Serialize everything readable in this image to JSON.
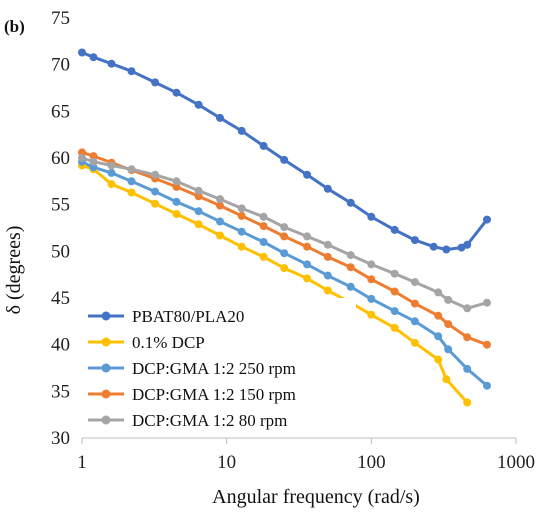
{
  "panel_label": "(b)",
  "chart_data": {
    "type": "line",
    "xlabel": "Angular frequency (rad/s)",
    "ylabel": "δ (degrees)",
    "xscale": "log",
    "xlim": [
      1,
      1000
    ],
    "ylim": [
      30,
      75
    ],
    "xticks": [
      "1",
      "10",
      "100",
      "1000"
    ],
    "yticks": [
      "30",
      "35",
      "40",
      "45",
      "50",
      "55",
      "60",
      "65",
      "70",
      "75"
    ],
    "grid": false,
    "legend_position": "bottom-left",
    "series": [
      {
        "name": "PBAT80/PLA20",
        "color": "#4472C4",
        "x": [
          1,
          1.2,
          1.6,
          2.2,
          3.2,
          4.5,
          6.4,
          9,
          12.7,
          18,
          25,
          36,
          50,
          72,
          100,
          145,
          200,
          270,
          330,
          420,
          460,
          630
        ],
        "y": [
          71.3,
          70.8,
          70.1,
          69.3,
          68.1,
          67.0,
          65.7,
          64.3,
          62.9,
          61.3,
          59.8,
          58.2,
          56.7,
          55.2,
          53.7,
          52.3,
          51.2,
          50.5,
          50.2,
          50.4,
          50.7,
          53.4
        ]
      },
      {
        "name": "0.1% DCP",
        "color": "#FFC000",
        "x": [
          1,
          1.2,
          1.6,
          2.2,
          3.2,
          4.5,
          6.4,
          9,
          12.7,
          18,
          25,
          36,
          50,
          72,
          100,
          145,
          200,
          290,
          330,
          460
        ],
        "y": [
          59.2,
          58.8,
          57.2,
          56.3,
          55.1,
          54.0,
          52.9,
          51.7,
          50.5,
          49.4,
          48.2,
          47.1,
          45.8,
          44.5,
          43.2,
          41.8,
          40.2,
          38.4,
          36.3,
          33.8
        ]
      },
      {
        "name": "DCP:GMA 1:2 250 rpm",
        "color": "#5B9BD5",
        "x": [
          1,
          1.2,
          1.6,
          2.2,
          3.2,
          4.5,
          6.4,
          9,
          12.7,
          18,
          25,
          36,
          50,
          72,
          100,
          145,
          200,
          290,
          340,
          460,
          630
        ],
        "y": [
          59.6,
          59.0,
          58.4,
          57.5,
          56.4,
          55.3,
          54.3,
          53.2,
          52.1,
          51.0,
          49.8,
          48.6,
          47.4,
          46.2,
          44.9,
          43.6,
          42.5,
          40.9,
          39.5,
          37.4,
          35.6
        ]
      },
      {
        "name": "DCP:GMA 1:2 150 rpm",
        "color": "#ED7D31",
        "x": [
          1,
          1.2,
          1.6,
          2.2,
          3.2,
          4.5,
          6.4,
          9,
          12.7,
          18,
          25,
          36,
          50,
          72,
          100,
          145,
          200,
          290,
          340,
          460,
          630
        ],
        "y": [
          60.6,
          60.2,
          59.5,
          58.7,
          57.8,
          56.9,
          55.9,
          54.9,
          53.8,
          52.7,
          51.6,
          50.5,
          49.4,
          48.3,
          47.0,
          45.7,
          44.4,
          43.1,
          42.2,
          40.8,
          40.0
        ]
      },
      {
        "name": "DCP:GMA 1:2 80 rpm",
        "color": "#A5A5A5",
        "x": [
          1,
          1.2,
          1.6,
          2.2,
          3.2,
          4.5,
          6.4,
          9,
          12.7,
          18,
          25,
          36,
          50,
          72,
          100,
          145,
          200,
          290,
          340,
          460,
          630
        ],
        "y": [
          60.0,
          59.6,
          59.2,
          58.8,
          58.2,
          57.5,
          56.5,
          55.6,
          54.6,
          53.7,
          52.6,
          51.6,
          50.7,
          49.6,
          48.6,
          47.6,
          46.7,
          45.6,
          44.8,
          43.9,
          44.5
        ]
      }
    ]
  }
}
